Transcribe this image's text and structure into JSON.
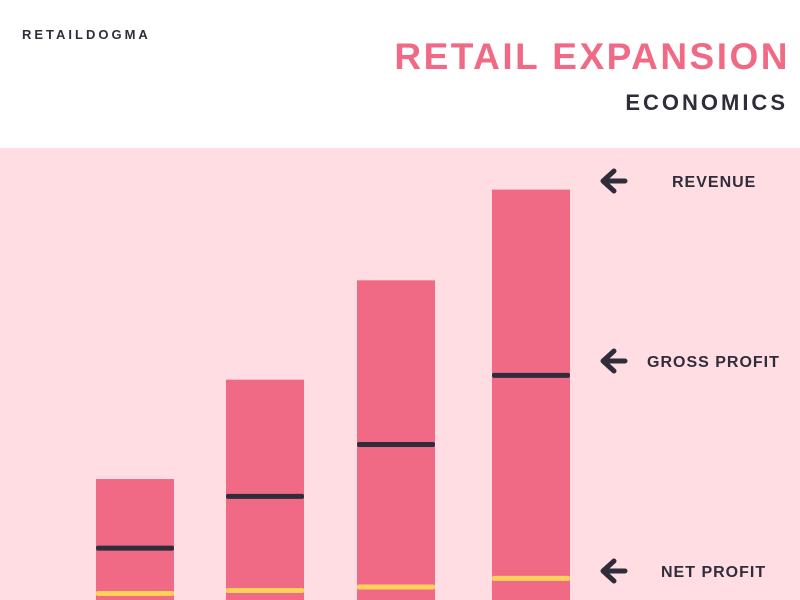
{
  "brand": "RETAILDOGMA",
  "title": "RETAIL EXPANSION",
  "subtitle": "ECONOMICS",
  "colors": {
    "background": "#ffffff",
    "panel": "#ffdde3",
    "bar": "#f06a85",
    "gross_marker": "#2f2d3a",
    "net_marker": "#ffd35a",
    "text": "#2f2d3a",
    "title": "#f06a85"
  },
  "chart_data": {
    "type": "bar",
    "categories": [
      "",
      "",
      "",
      ""
    ],
    "ylim": [
      0,
      100
    ],
    "grid": false,
    "series": [
      {
        "name": "REVENUE",
        "values": [
          28,
          51,
          74,
          95
        ]
      },
      {
        "name": "GROSS PROFIT",
        "values": [
          12,
          24,
          36,
          52
        ]
      },
      {
        "name": "NET PROFIT",
        "values": [
          1.5,
          2.2,
          3.0,
          5.0
        ]
      }
    ],
    "legend": {
      "placement": "right",
      "items": [
        {
          "label": "REVENUE",
          "icon": "arrow-left-icon"
        },
        {
          "label": "GROSS PROFIT",
          "icon": "arrow-left-icon"
        },
        {
          "label": "NET PROFIT",
          "icon": "arrow-left-icon"
        }
      ]
    }
  }
}
